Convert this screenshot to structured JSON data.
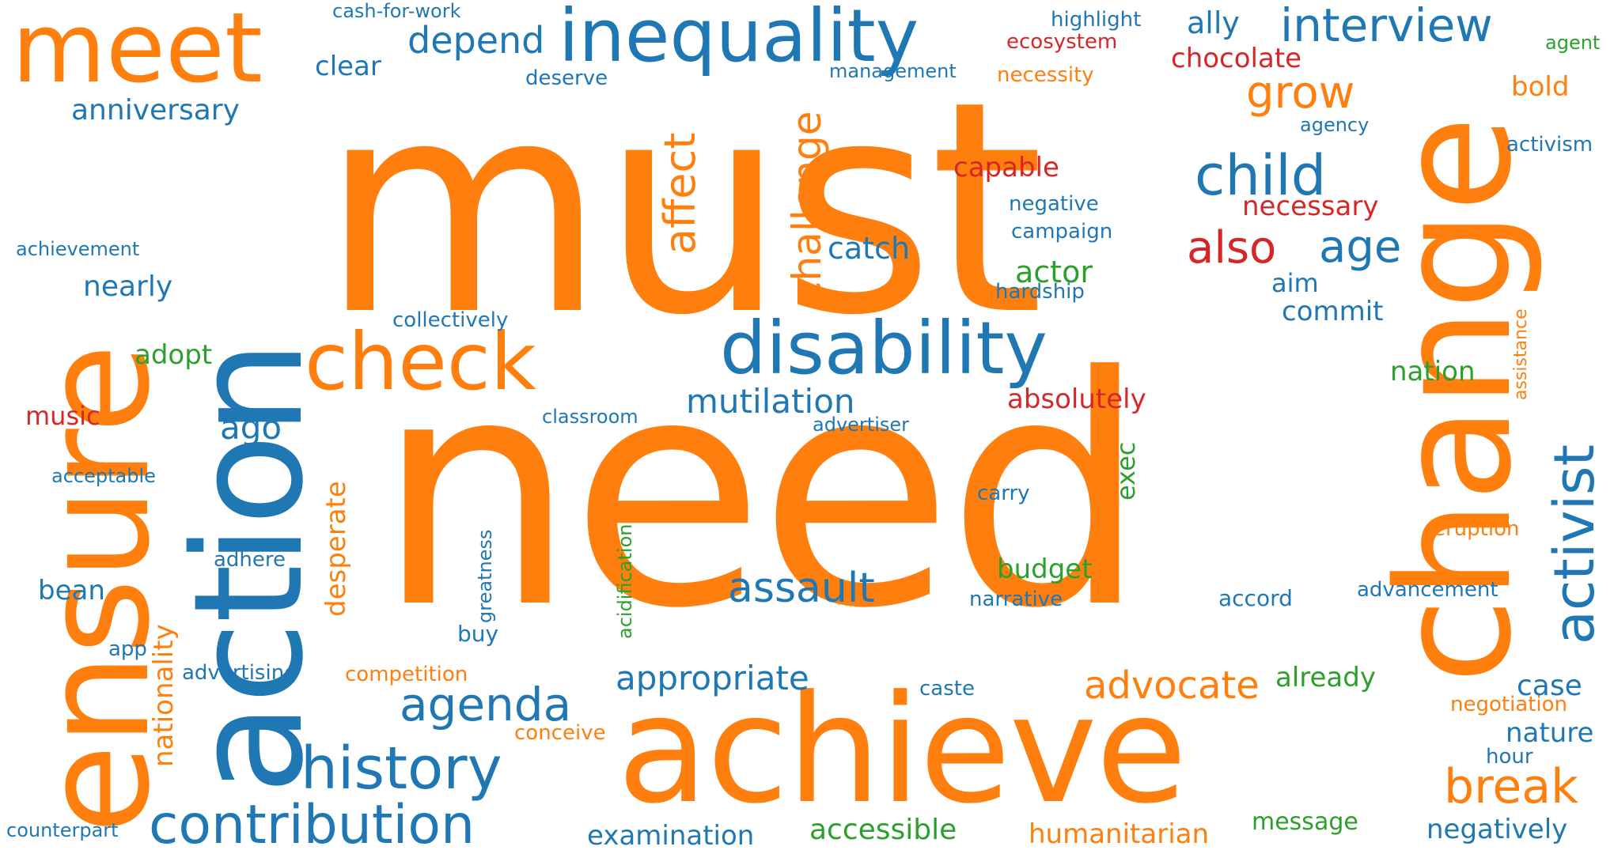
{
  "palette": {
    "orange": "#ff7f0e",
    "blue": "#1f77b4",
    "red": "#d62728",
    "green": "#2ca02c"
  },
  "words": [
    {
      "text": "must",
      "color": "orange"
    },
    {
      "text": "need",
      "color": "orange"
    },
    {
      "text": "achieve",
      "color": "orange"
    },
    {
      "text": "change",
      "color": "orange"
    },
    {
      "text": "ensure",
      "color": "orange"
    },
    {
      "text": "action",
      "color": "blue"
    },
    {
      "text": "meet",
      "color": "orange"
    },
    {
      "text": "inequality",
      "color": "blue"
    },
    {
      "text": "disability",
      "color": "blue"
    },
    {
      "text": "check",
      "color": "orange"
    },
    {
      "text": "history",
      "color": "blue"
    },
    {
      "text": "contribution",
      "color": "blue"
    },
    {
      "text": "activist",
      "color": "blue"
    },
    {
      "text": "interview",
      "color": "blue"
    },
    {
      "text": "child",
      "color": "blue"
    },
    {
      "text": "agenda",
      "color": "blue"
    },
    {
      "text": "assault",
      "color": "blue"
    },
    {
      "text": "break",
      "color": "orange"
    },
    {
      "text": "advocate",
      "color": "orange"
    },
    {
      "text": "challenge",
      "color": "orange"
    },
    {
      "text": "affect",
      "color": "orange"
    },
    {
      "text": "grow",
      "color": "orange"
    },
    {
      "text": "also",
      "color": "red"
    },
    {
      "text": "age",
      "color": "blue"
    },
    {
      "text": "depend",
      "color": "blue"
    },
    {
      "text": "mutilation",
      "color": "blue"
    },
    {
      "text": "appropriate",
      "color": "blue"
    },
    {
      "text": "ally",
      "color": "blue"
    },
    {
      "text": "catch",
      "color": "blue"
    },
    {
      "text": "ago",
      "color": "blue"
    },
    {
      "text": "anniversary",
      "color": "blue"
    },
    {
      "text": "nearly",
      "color": "blue"
    },
    {
      "text": "chocolate",
      "color": "red"
    },
    {
      "text": "necessary",
      "color": "red"
    },
    {
      "text": "capable",
      "color": "red"
    },
    {
      "text": "absolutely",
      "color": "red"
    },
    {
      "text": "actor",
      "color": "green"
    },
    {
      "text": "commit",
      "color": "blue"
    },
    {
      "text": "aim",
      "color": "blue"
    },
    {
      "text": "nation",
      "color": "green"
    },
    {
      "text": "already",
      "color": "green"
    },
    {
      "text": "case",
      "color": "blue"
    },
    {
      "text": "nature",
      "color": "blue"
    },
    {
      "text": "negatively",
      "color": "blue"
    },
    {
      "text": "humanitarian",
      "color": "orange"
    },
    {
      "text": "accessible",
      "color": "green"
    },
    {
      "text": "examination",
      "color": "blue"
    },
    {
      "text": "message",
      "color": "green"
    },
    {
      "text": "budget",
      "color": "green"
    },
    {
      "text": "desperate",
      "color": "orange"
    },
    {
      "text": "nationality",
      "color": "orange"
    },
    {
      "text": "clear",
      "color": "blue"
    },
    {
      "text": "adopt",
      "color": "green"
    },
    {
      "text": "music",
      "color": "red"
    },
    {
      "text": "bean",
      "color": "blue"
    },
    {
      "text": "bold",
      "color": "orange"
    },
    {
      "text": "exec",
      "color": "green"
    },
    {
      "text": "cash-for-work",
      "color": "blue"
    },
    {
      "text": "highlight",
      "color": "blue"
    },
    {
      "text": "ecosystem",
      "color": "red"
    },
    {
      "text": "necessity",
      "color": "orange"
    },
    {
      "text": "management",
      "color": "blue"
    },
    {
      "text": "deserve",
      "color": "blue"
    },
    {
      "text": "agency",
      "color": "blue"
    },
    {
      "text": "activism",
      "color": "blue"
    },
    {
      "text": "agent",
      "color": "green"
    },
    {
      "text": "negative",
      "color": "blue"
    },
    {
      "text": "campaign",
      "color": "blue"
    },
    {
      "text": "hardship",
      "color": "blue"
    },
    {
      "text": "achievement",
      "color": "blue"
    },
    {
      "text": "collectively",
      "color": "blue"
    },
    {
      "text": "classroom",
      "color": "blue"
    },
    {
      "text": "advertiser",
      "color": "blue"
    },
    {
      "text": "acceptable",
      "color": "blue"
    },
    {
      "text": "carry",
      "color": "blue"
    },
    {
      "text": "eruption",
      "color": "orange"
    },
    {
      "text": "adhere",
      "color": "blue"
    },
    {
      "text": "narrative",
      "color": "blue"
    },
    {
      "text": "accord",
      "color": "blue"
    },
    {
      "text": "advancement",
      "color": "blue"
    },
    {
      "text": "app",
      "color": "blue"
    },
    {
      "text": "buy",
      "color": "blue"
    },
    {
      "text": "advertising",
      "color": "blue"
    },
    {
      "text": "competition",
      "color": "orange"
    },
    {
      "text": "caste",
      "color": "blue"
    },
    {
      "text": "negotiation",
      "color": "orange"
    },
    {
      "text": "conceive",
      "color": "orange"
    },
    {
      "text": "hour",
      "color": "blue"
    },
    {
      "text": "counterpart",
      "color": "blue"
    },
    {
      "text": "greatness",
      "color": "blue"
    },
    {
      "text": "acidification",
      "color": "green"
    },
    {
      "text": "assistance",
      "color": "orange"
    }
  ]
}
